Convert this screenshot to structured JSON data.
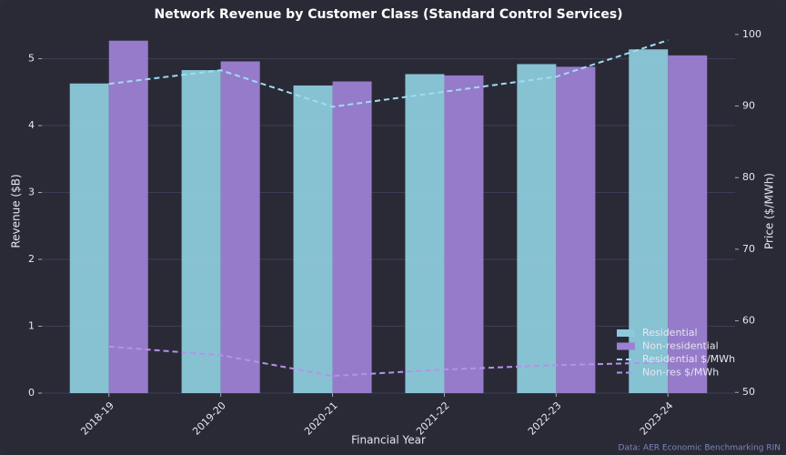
{
  "chart_data": {
    "type": "bar_line",
    "title": "Network Revenue by Customer Class (Standard Control Services)",
    "x_label": "Financial Year",
    "y_label": "Revenue ($B)",
    "y2_label": "Price ($/MWh)",
    "source": "Data: AER Economic Benchmarking RIN",
    "categories": [
      "2018-19",
      "2019-20",
      "2020-21",
      "2021-22",
      "2022-23",
      "2023-24"
    ],
    "series": [
      {
        "name": "Residential",
        "kind": "bar",
        "color": "#8ccadb",
        "values": [
          4.63,
          4.83,
          4.6,
          4.77,
          4.92,
          5.14
        ]
      },
      {
        "name": "Non-residential",
        "kind": "bar",
        "color": "#9c80d2",
        "values": [
          5.27,
          4.96,
          4.66,
          4.75,
          4.88,
          5.05
        ]
      },
      {
        "name": "Residential $/MWh",
        "kind": "line",
        "axis": "y2",
        "color": "#9fdcf2",
        "values": [
          93.1,
          95.0,
          89.9,
          92.0,
          94.1,
          99.2
        ]
      },
      {
        "name": "Non-res $/MWh",
        "kind": "line",
        "axis": "y2",
        "color": "#b592ea",
        "values": [
          56.4,
          55.2,
          52.3,
          53.2,
          53.8,
          54.2
        ]
      }
    ],
    "ylim": [
      0,
      5.47
    ],
    "yticks": [
      0,
      1,
      2,
      3,
      4,
      5
    ],
    "y2lim": [
      49.9,
      101
    ],
    "y2ticks": [
      50,
      60,
      70,
      80,
      90,
      100
    ],
    "grid": true,
    "legend": "lower right"
  }
}
